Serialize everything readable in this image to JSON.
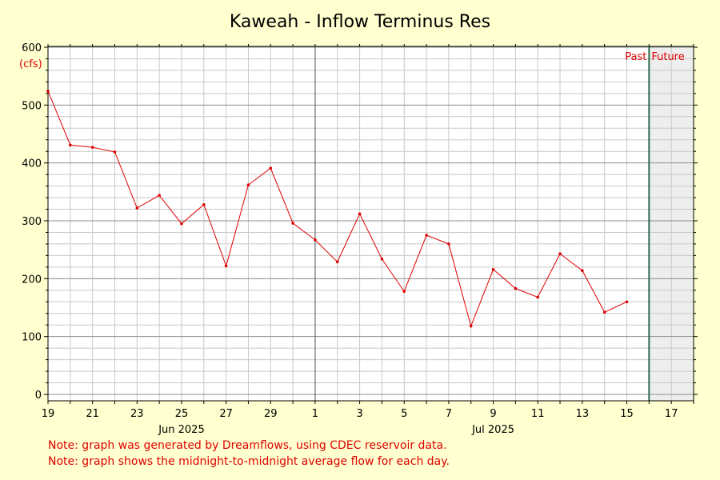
{
  "chart_data": {
    "type": "line",
    "title": "Kaweah - Inflow Terminus Res",
    "ylabel": "(cfs)",
    "ylim": [
      0,
      600
    ],
    "yticks": [
      0,
      100,
      200,
      300,
      400,
      500,
      600
    ],
    "x_start": "2025-06-19",
    "x_end": "2025-07-18",
    "x_tick_labels": [
      "19",
      "21",
      "23",
      "25",
      "27",
      "29",
      "1",
      "3",
      "5",
      "7",
      "9",
      "11",
      "13",
      "15",
      "17"
    ],
    "month_labels": [
      "Jun 2025",
      "Jul 2025"
    ],
    "past_label": "Past",
    "future_label": "Future",
    "past_future_boundary": "2025-07-16",
    "grid": true,
    "series": [
      {
        "color": "#e00000",
        "x": [
          "2025-06-19",
          "2025-06-20",
          "2025-06-21",
          "2025-06-22",
          "2025-06-23",
          "2025-06-24",
          "2025-06-25",
          "2025-06-26",
          "2025-06-27",
          "2025-06-28",
          "2025-06-29",
          "2025-06-30",
          "2025-07-01",
          "2025-07-02",
          "2025-07-03",
          "2025-07-04",
          "2025-07-05",
          "2025-07-06",
          "2025-07-07",
          "2025-07-08",
          "2025-07-09",
          "2025-07-10",
          "2025-07-11",
          "2025-07-12",
          "2025-07-13",
          "2025-07-14",
          "2025-07-15"
        ],
        "values": [
          524,
          431,
          427,
          419,
          322,
          344,
          295,
          328,
          222,
          362,
          391,
          296,
          267,
          229,
          312,
          234,
          178,
          275,
          260,
          118,
          216,
          183,
          168,
          243,
          214,
          142,
          160
        ]
      }
    ]
  },
  "notes": [
    "Note: graph was generated by Dreamflows, using CDEC reservoir data.",
    "Note: graph shows the midnight-to-midnight average flow for each day."
  ]
}
